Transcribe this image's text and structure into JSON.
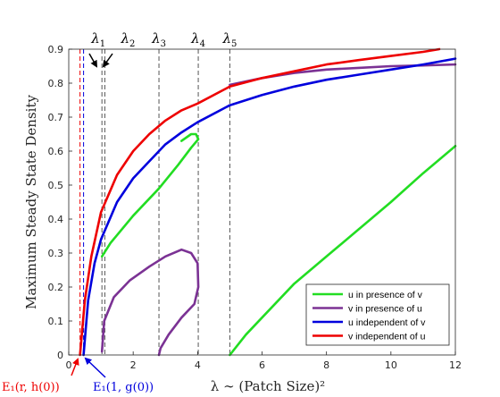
{
  "chart_data": {
    "type": "line",
    "xlabel": "λ ∼ (Patch Size)²",
    "ylabel": "Maximum Steady State Density",
    "xlim": [
      0,
      12
    ],
    "ylim": [
      0,
      0.9
    ],
    "xticks": [
      "0",
      "2",
      "4",
      "6",
      "8",
      "10",
      "12"
    ],
    "yticks": [
      "0",
      "0.1",
      "0.2",
      "0.3",
      "0.4",
      "0.5",
      "0.6",
      "0.7",
      "0.8",
      "0.9"
    ],
    "grid": false,
    "legend_position": "bottom-right",
    "colors": {
      "u_with_v": "#22dd22",
      "v_with_u": "#7b3294",
      "u_alone": "#0000dd",
      "v_alone": "#ee0000",
      "threshold": "#555555"
    },
    "series": [
      {
        "name": "u in presence of v",
        "color": "#22dd22",
        "segments": [
          [
            [
              1.03,
              0.29
            ],
            [
              1.3,
              0.33
            ],
            [
              2.0,
              0.41
            ],
            [
              2.8,
              0.49
            ],
            [
              3.4,
              0.56
            ],
            [
              3.8,
              0.61
            ],
            [
              4.02,
              0.635
            ],
            [
              3.95,
              0.65
            ],
            [
              3.8,
              0.65
            ],
            [
              3.5,
              0.63
            ]
          ],
          [
            [
              5.0,
              0.0
            ],
            [
              5.5,
              0.06
            ],
            [
              6.0,
              0.11
            ],
            [
              7.0,
              0.21
            ],
            [
              8.0,
              0.29
            ],
            [
              9.0,
              0.37
            ],
            [
              10.0,
              0.45
            ],
            [
              11.0,
              0.535
            ],
            [
              12.0,
              0.615
            ]
          ]
        ]
      },
      {
        "name": "v in presence of u",
        "color": "#7b3294",
        "segments": [
          [
            [
              1.03,
              0.01
            ],
            [
              1.1,
              0.1
            ],
            [
              1.4,
              0.17
            ],
            [
              1.9,
              0.22
            ],
            [
              2.5,
              0.26
            ],
            [
              3.0,
              0.29
            ],
            [
              3.5,
              0.31
            ],
            [
              3.8,
              0.3
            ],
            [
              4.0,
              0.27
            ],
            [
              4.02,
              0.2
            ],
            [
              3.9,
              0.15
            ],
            [
              3.5,
              0.11
            ],
            [
              3.1,
              0.06
            ],
            [
              2.85,
              0.02
            ],
            [
              2.8,
              0.0
            ]
          ],
          [
            [
              5.0,
              0.795
            ],
            [
              6.0,
              0.815
            ],
            [
              7.0,
              0.83
            ],
            [
              8.0,
              0.84
            ],
            [
              9.0,
              0.845
            ],
            [
              10.0,
              0.85
            ],
            [
              11.0,
              0.852
            ],
            [
              12.0,
              0.855
            ]
          ]
        ]
      },
      {
        "name": "u independent of v",
        "color": "#0000dd",
        "segments": [
          [
            [
              0.46,
              0.0
            ],
            [
              0.6,
              0.16
            ],
            [
              0.8,
              0.27
            ],
            [
              1.0,
              0.34
            ],
            [
              1.5,
              0.45
            ],
            [
              2.0,
              0.52
            ],
            [
              2.5,
              0.57
            ],
            [
              3.0,
              0.62
            ],
            [
              3.5,
              0.655
            ],
            [
              4.0,
              0.685
            ],
            [
              5.0,
              0.735
            ],
            [
              6.0,
              0.765
            ],
            [
              7.0,
              0.79
            ],
            [
              8.0,
              0.81
            ],
            [
              9.0,
              0.825
            ],
            [
              10.0,
              0.84
            ],
            [
              11.0,
              0.855
            ],
            [
              12.0,
              0.872
            ]
          ]
        ]
      },
      {
        "name": "v independent of u",
        "color": "#ee0000",
        "segments": [
          [
            [
              0.35,
              0.0
            ],
            [
              0.5,
              0.16
            ],
            [
              0.7,
              0.29
            ],
            [
              1.0,
              0.42
            ],
            [
              1.5,
              0.53
            ],
            [
              2.0,
              0.6
            ],
            [
              2.5,
              0.65
            ],
            [
              3.0,
              0.69
            ],
            [
              3.5,
              0.72
            ],
            [
              4.0,
              0.74
            ],
            [
              5.0,
              0.79
            ],
            [
              6.0,
              0.815
            ],
            [
              7.0,
              0.835
            ],
            [
              8.0,
              0.855
            ],
            [
              9.0,
              0.868
            ],
            [
              10.0,
              0.88
            ],
            [
              11.0,
              0.892
            ],
            [
              11.5,
              0.9
            ]
          ]
        ]
      }
    ],
    "vertical_lines": [
      {
        "x": 0.35,
        "color": "#ee0000"
      },
      {
        "x": 0.46,
        "color": "#0000dd"
      },
      {
        "x": 1.03,
        "color": "#555555",
        "label": "λ",
        "sub": "1"
      },
      {
        "x": 1.12,
        "color": "#555555",
        "label": "λ",
        "sub": "2"
      },
      {
        "x": 2.8,
        "color": "#555555",
        "label": "λ",
        "sub": "3"
      },
      {
        "x": 4.02,
        "color": "#555555",
        "label": "λ",
        "sub": "4"
      },
      {
        "x": 5.0,
        "color": "#555555",
        "label": "λ",
        "sub": "5"
      }
    ],
    "annotations": [
      {
        "text": "E₁(r, h(0))",
        "color": "#ee0000",
        "points_to": [
          0.35,
          0.0
        ]
      },
      {
        "text": "E₁(1, g(0))",
        "color": "#0000dd",
        "points_to": [
          0.46,
          0.0
        ]
      }
    ]
  }
}
